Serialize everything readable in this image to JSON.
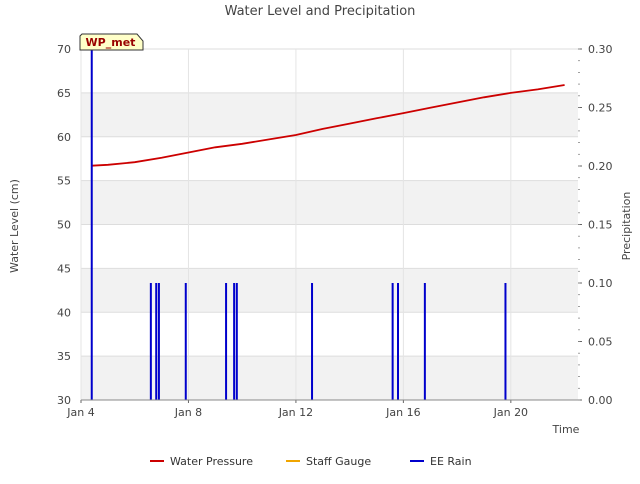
{
  "chart_data": {
    "type": "line",
    "title": "Water Level and Precipitation",
    "station_label": "WP_met",
    "xlabel": "Time",
    "ylabel_left": "Water Level (cm)",
    "ylabel_right": "Precipitation",
    "x_unit": "days (Jan)",
    "xlim": [
      4,
      22.5
    ],
    "ylim_left": [
      30,
      70
    ],
    "ylim_right": [
      0,
      0.3
    ],
    "x_ticks": [
      {
        "value": 4,
        "label": "Jan 4"
      },
      {
        "value": 8,
        "label": "Jan 8"
      },
      {
        "value": 12,
        "label": "Jan 12"
      },
      {
        "value": 16,
        "label": "Jan 16"
      },
      {
        "value": 20,
        "label": "Jan 20"
      }
    ],
    "y_ticks_left": [
      {
        "value": 30,
        "label": "30"
      },
      {
        "value": 35,
        "label": "35"
      },
      {
        "value": 40,
        "label": "40"
      },
      {
        "value": 45,
        "label": "45"
      },
      {
        "value": 50,
        "label": "50"
      },
      {
        "value": 55,
        "label": "55"
      },
      {
        "value": 60,
        "label": "60"
      },
      {
        "value": 65,
        "label": "65"
      },
      {
        "value": 70,
        "label": "70"
      }
    ],
    "y_ticks_right": [
      {
        "value": 0.0,
        "label": "0.00"
      },
      {
        "value": 0.05,
        "label": "0.05"
      },
      {
        "value": 0.1,
        "label": "0.10"
      },
      {
        "value": 0.15,
        "label": "0.15"
      },
      {
        "value": 0.2,
        "label": "0.20"
      },
      {
        "value": 0.25,
        "label": "0.25"
      },
      {
        "value": 0.3,
        "label": "0.30"
      }
    ],
    "grid": true,
    "banded_background": true,
    "legend_position": "bottom",
    "series": [
      {
        "name": "Water Pressure",
        "axis": "left",
        "color": "#cc0000",
        "style": "line",
        "x": [
          4.4,
          5.0,
          6.0,
          7.0,
          8.0,
          9.0,
          10.0,
          11.0,
          12.0,
          13.0,
          14.0,
          15.0,
          16.0,
          17.0,
          18.0,
          19.0,
          20.0,
          21.0,
          22.0
        ],
        "y": [
          56.7,
          56.8,
          57.1,
          57.6,
          58.2,
          58.8,
          59.2,
          59.7,
          60.2,
          60.9,
          61.5,
          62.1,
          62.7,
          63.3,
          63.9,
          64.5,
          65.0,
          65.4,
          65.9
        ]
      },
      {
        "name": "Staff Gauge",
        "axis": "left",
        "color": "#f0a500",
        "style": "line",
        "x": [],
        "y": []
      },
      {
        "name": "EE Rain",
        "axis": "right",
        "color": "#0000cc",
        "style": "spikes",
        "x": [
          4.4,
          6.6,
          6.8,
          6.9,
          7.9,
          9.4,
          9.7,
          9.8,
          12.6,
          15.6,
          15.8,
          16.8,
          19.8
        ],
        "y": [
          0.3,
          0.1,
          0.1,
          0.1,
          0.1,
          0.1,
          0.1,
          0.1,
          0.1,
          0.1,
          0.1,
          0.1,
          0.1
        ]
      }
    ]
  }
}
